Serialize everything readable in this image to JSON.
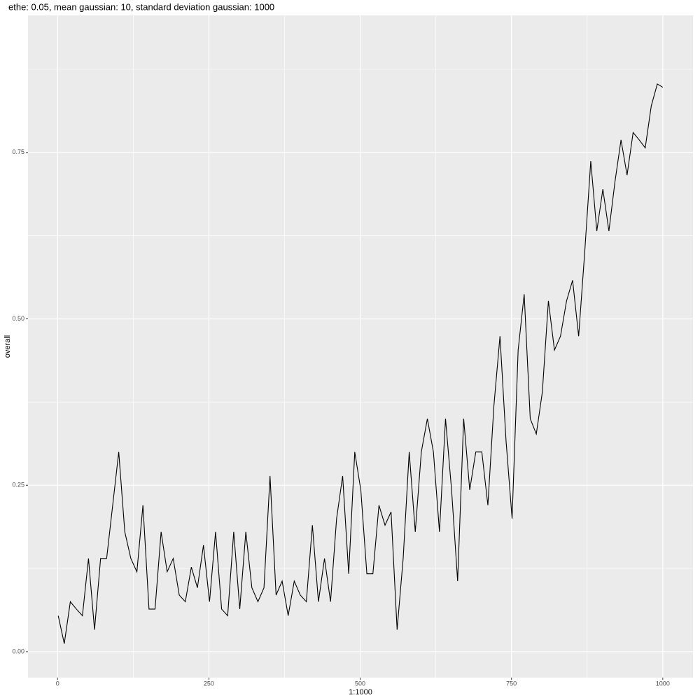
{
  "chart_data": {
    "type": "line",
    "title": "ethe: 0.05, mean gaussian: 10, standard deviation gaussian: 1000",
    "x_label": "1:1000",
    "y_label": "overall",
    "x": [
      1,
      11,
      21,
      31,
      41,
      51,
      61,
      71,
      81,
      91,
      101,
      111,
      121,
      131,
      141,
      151,
      161,
      171,
      181,
      191,
      201,
      211,
      221,
      231,
      241,
      251,
      261,
      271,
      281,
      291,
      301,
      311,
      321,
      331,
      341,
      351,
      361,
      371,
      381,
      391,
      401,
      411,
      421,
      431,
      441,
      451,
      461,
      471,
      481,
      491,
      501,
      511,
      521,
      531,
      541,
      551,
      561,
      571,
      581,
      591,
      601,
      611,
      621,
      631,
      641,
      651,
      661,
      671,
      681,
      691,
      701,
      711,
      721,
      731,
      741,
      751,
      761,
      771,
      781,
      791,
      801,
      811,
      821,
      831,
      841,
      851,
      861,
      871,
      881,
      891,
      901,
      911,
      921,
      931,
      941,
      951,
      961,
      971,
      981,
      991,
      1000
    ],
    "series": [
      {
        "name": "overall",
        "color": "#000000",
        "values": [
          0.054,
          0.012,
          0.075,
          0.064,
          0.054,
          0.14,
          0.033,
          0.14,
          0.14,
          0.22,
          0.3,
          0.18,
          0.14,
          0.12,
          0.22,
          0.064,
          0.064,
          0.18,
          0.12,
          0.14,
          0.085,
          0.075,
          0.127,
          0.096,
          0.16,
          0.075,
          0.18,
          0.064,
          0.054,
          0.18,
          0.064,
          0.18,
          0.096,
          0.075,
          0.096,
          0.264,
          0.085,
          0.106,
          0.054,
          0.106,
          0.085,
          0.075,
          0.19,
          0.075,
          0.14,
          0.075,
          0.2,
          0.264,
          0.117,
          0.3,
          0.243,
          0.117,
          0.117,
          0.22,
          0.19,
          0.21,
          0.033,
          0.14,
          0.3,
          0.18,
          0.3,
          0.35,
          0.3,
          0.18,
          0.35,
          0.243,
          0.106,
          0.35,
          0.243,
          0.3,
          0.3,
          0.22,
          0.37,
          0.474,
          0.317,
          0.2,
          0.453,
          0.537,
          0.35,
          0.327,
          0.39,
          0.527,
          0.453,
          0.474,
          0.527,
          0.558,
          0.474,
          0.6,
          0.737,
          0.632,
          0.695,
          0.632,
          0.706,
          0.769,
          0.716,
          0.78,
          0.769,
          0.757,
          0.82,
          0.853,
          0.848
        ]
      }
    ],
    "xlim": [
      -48.95,
      1049.95
    ],
    "xticks": [
      0,
      250,
      500,
      750,
      1000
    ],
    "ylim": [
      -0.039,
      0.956
    ],
    "yticks": [
      {
        "value": 0,
        "label": "0.00"
      },
      {
        "value": 0.25,
        "label": "0.25"
      },
      {
        "value": 0.5,
        "label": "0.50"
      },
      {
        "value": 0.75,
        "label": "0.75"
      }
    ],
    "x_minor_grid": [
      125,
      375,
      625,
      875
    ],
    "y_minor_grid": [
      0.125,
      0.375,
      0.625,
      0.875
    ],
    "grid": true,
    "panel_color": "#ebebeb"
  }
}
